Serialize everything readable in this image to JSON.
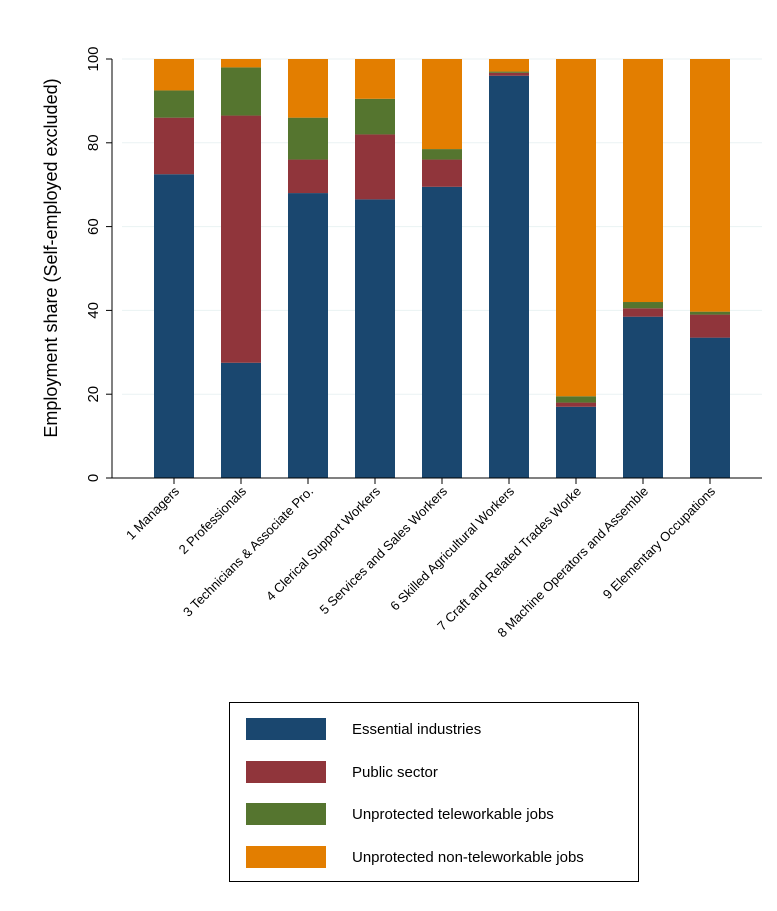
{
  "chart_data": {
    "type": "bar",
    "stacked": true,
    "title": "",
    "xlabel": "",
    "ylabel": "Employment share (Self-employed excluded)",
    "ylim": [
      0,
      100
    ],
    "yticks": [
      0,
      20,
      40,
      60,
      80,
      100
    ],
    "grid": true,
    "legend_position": "bottom",
    "categories": [
      "1 Managers",
      "2 Professionals",
      "3 Technicians & Associate Pro.",
      "4 Clerical Support Workers",
      "5 Services and Sales Workers",
      "6 Skilled Agricultural Workers",
      "7 Craft and Related Trades Worke",
      "8 Machine Operators and Assemble",
      "9 Elementary Occupations"
    ],
    "series": [
      {
        "name": "Essential industries",
        "color": "#1a476f",
        "values": [
          72.5,
          27.5,
          68,
          66.5,
          69.5,
          96,
          17,
          38.5,
          33.5
        ]
      },
      {
        "name": "Public sector",
        "color": "#90353b",
        "values": [
          13.5,
          59,
          8,
          15.5,
          6.5,
          0.7,
          1,
          2,
          5.5
        ]
      },
      {
        "name": "Unprotected teleworkable jobs",
        "color": "#55752f",
        "values": [
          6.5,
          11.5,
          10,
          8.5,
          2.5,
          0.3,
          1.5,
          1.5,
          0.7
        ]
      },
      {
        "name": "Unprotected non-teleworkable jobs",
        "color": "#e37e00",
        "values": [
          7.5,
          2,
          14,
          9.5,
          21.5,
          3,
          80.5,
          58,
          60.3
        ]
      }
    ]
  }
}
